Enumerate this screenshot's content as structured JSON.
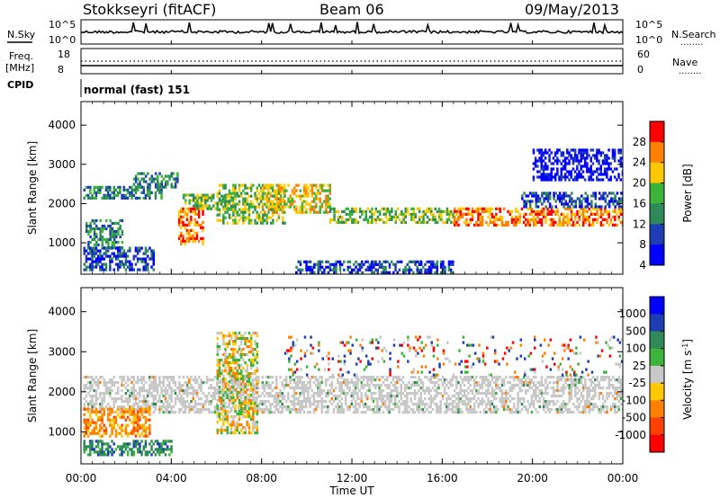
{
  "header": {
    "station": "Stokkseyri (fitACF)",
    "beam": "Beam 06",
    "date": "09/May/2013"
  },
  "aux_panels": {
    "nsky_label": "N.Sky",
    "nsky_ticks": [
      "10^5",
      "10^0"
    ],
    "nsearch_label": "N.Search",
    "nsearch_ticks": [
      "10^5",
      "10^0"
    ],
    "freq_label_1": "Freq.",
    "freq_label_2": "[MHz]",
    "freq_ticks": [
      "18",
      "8"
    ],
    "nave_label": "Nave",
    "nave_ticks": [
      "60",
      "0"
    ],
    "cpid_label": "CPID",
    "cpid_value": "normal (fast) 151",
    "line_style_hint": "........"
  },
  "x_axis": {
    "label": "Time UT",
    "ticks": [
      "00:00",
      "04:00",
      "08:00",
      "12:00",
      "16:00",
      "20:00",
      "00:00"
    ],
    "tick_hours": [
      0,
      4,
      8,
      12,
      16,
      20,
      24
    ]
  },
  "chart_data": [
    {
      "type": "heatmap",
      "panel": "power",
      "ylabel": "Slant Range [km]",
      "yticks": [
        1000,
        2000,
        3000,
        4000
      ],
      "ylim": [
        200,
        4600
      ],
      "xlim_hours": [
        0,
        24
      ],
      "colorbar_label": "Power [dB]",
      "colorbar_ticks": [
        "28",
        "24",
        "20",
        "16",
        "12",
        "8",
        "4"
      ],
      "colorbar_colors": [
        "#ff0000",
        "#ff7f00",
        "#ffc800",
        "#3cb43c",
        "#2e8b57",
        "#1e3cb4",
        "#0000ff"
      ],
      "bands": [
        {
          "t0": 0.1,
          "t1": 3.6,
          "r0": 2150,
          "r1": 2450,
          "level": 2
        },
        {
          "t0": 2.3,
          "t1": 4.3,
          "r0": 2450,
          "r1": 2800,
          "level": 2
        },
        {
          "t0": 4.3,
          "t1": 5.4,
          "r0": 1000,
          "r1": 1900,
          "level": 5
        },
        {
          "t0": 4.5,
          "t1": 6.8,
          "r0": 1900,
          "r1": 2250,
          "level": 3
        },
        {
          "t0": 6.0,
          "t1": 9.0,
          "r0": 1500,
          "r1": 2500,
          "level": 3
        },
        {
          "t0": 8.0,
          "t1": 11.0,
          "r0": 1800,
          "r1": 2500,
          "level": 4
        },
        {
          "t0": 11.0,
          "t1": 16.5,
          "r0": 1500,
          "r1": 1900,
          "level": 3
        },
        {
          "t0": 16.5,
          "t1": 24.0,
          "r0": 1450,
          "r1": 1900,
          "level": 5
        },
        {
          "t0": 19.5,
          "t1": 24.0,
          "r0": 1950,
          "r1": 2300,
          "level": 1
        },
        {
          "t0": 0.2,
          "t1": 1.8,
          "r0": 900,
          "r1": 1600,
          "level": 2
        },
        {
          "t0": 0.1,
          "t1": 3.2,
          "r0": 300,
          "r1": 900,
          "level": 1
        },
        {
          "t0": 9.5,
          "t1": 16.5,
          "r0": 200,
          "r1": 550,
          "level": 1
        },
        {
          "t0": 20.0,
          "t1": 24.0,
          "r0": 2600,
          "r1": 3400,
          "level": 0
        }
      ]
    },
    {
      "type": "heatmap",
      "panel": "velocity",
      "ylabel": "Slant Range [km]",
      "yticks": [
        1000,
        2000,
        3000,
        4000
      ],
      "ylim": [
        200,
        4600
      ],
      "xlim_hours": [
        0,
        24
      ],
      "colorbar_label": "Velocity [m s",
      "colorbar_units_sup": "-1",
      "colorbar_label_end": "]",
      "colorbar_ticks": [
        "1000",
        "500",
        "100",
        "25",
        "-25",
        "-100",
        "-500",
        "-1000"
      ],
      "colorbar_colors": [
        "#0000ff",
        "#1e3cb4",
        "#2e8b57",
        "#3cb43c",
        "#c8c8c8",
        "#ffc800",
        "#ff7f00",
        "#ff4000",
        "#ff0000"
      ],
      "bands": [
        {
          "t0": 0.1,
          "t1": 24.0,
          "r0": 1500,
          "r1": 2400,
          "level": "gray"
        },
        {
          "t0": 0.1,
          "t1": 3.0,
          "r0": 900,
          "r1": 1600,
          "level": "orange"
        },
        {
          "t0": 0.1,
          "t1": 4.0,
          "r0": 400,
          "r1": 800,
          "level": "green"
        },
        {
          "t0": 6.0,
          "t1": 7.8,
          "r0": 1000,
          "r1": 3500,
          "level": "yellow"
        },
        {
          "t0": 9.0,
          "t1": 24.0,
          "r0": 2400,
          "r1": 3400,
          "level": "sparse"
        }
      ]
    }
  ]
}
